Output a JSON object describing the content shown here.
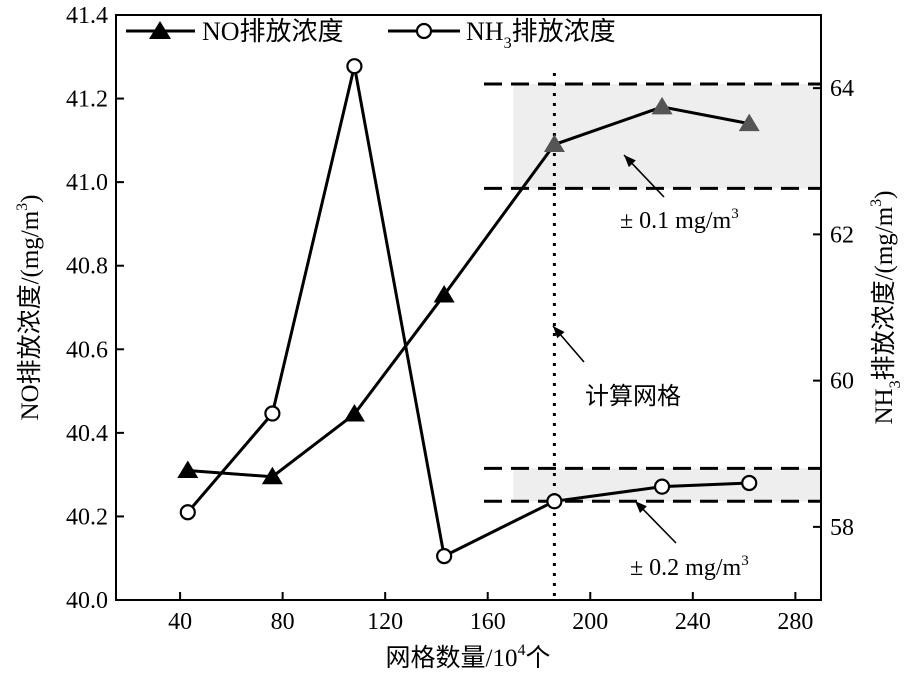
{
  "chart_data": {
    "type": "line",
    "xlabel_main": "网格数量/10",
    "xlabel_sup": "4",
    "xlabel_end": "个",
    "y1label_main": "NO排放浓度/(mg/m",
    "y1label_sup": "3",
    "y1label_end": ")",
    "y2label_pre": "NH",
    "y2label_sub": "3",
    "y2label_main": "排放浓度/(mg/m",
    "y2label_sup": "3",
    "y2label_end": ")",
    "xlim": [
      15,
      290
    ],
    "y1lim": [
      40.0,
      41.4
    ],
    "y2lim": [
      57.0,
      65.0
    ],
    "x_ticks": [
      "40",
      "80",
      "120",
      "160",
      "200",
      "240",
      "280"
    ],
    "y1_ticks": [
      "40.0",
      "40.2",
      "40.4",
      "40.6",
      "40.8",
      "41.0",
      "41.2",
      "41.4"
    ],
    "y2_ticks": [
      "58",
      "60",
      "62",
      "64"
    ],
    "series": [
      {
        "name_main": "NO排放浓度",
        "axis": "left",
        "marker": "filled-triangle",
        "x": [
          43,
          76,
          108,
          143,
          186,
          228,
          262
        ],
        "y": [
          40.31,
          40.295,
          40.445,
          40.73,
          41.09,
          41.18,
          41.14
        ]
      },
      {
        "name_pre": "NH",
        "name_sub": "3",
        "name_main": "排放浓度",
        "axis": "right",
        "marker": "open-circle",
        "x": [
          43,
          76,
          108,
          143,
          186,
          228,
          262
        ],
        "y": [
          58.2,
          59.55,
          64.3,
          57.6,
          58.35,
          58.55,
          58.6
        ]
      }
    ],
    "annotations": {
      "calc_mesh_x": 186,
      "calc_mesh_label": "计算网格",
      "no_band": {
        "x_start": 170,
        "y_low": 40.985,
        "y_high": 41.235,
        "label_main": "± 0.1 mg/m",
        "label_sup": "3"
      },
      "nh3_band": {
        "x_start": 170,
        "y_low": 58.35,
        "y_high": 58.8,
        "label_main": "± 0.2 mg/m",
        "label_sup": "3"
      }
    }
  }
}
